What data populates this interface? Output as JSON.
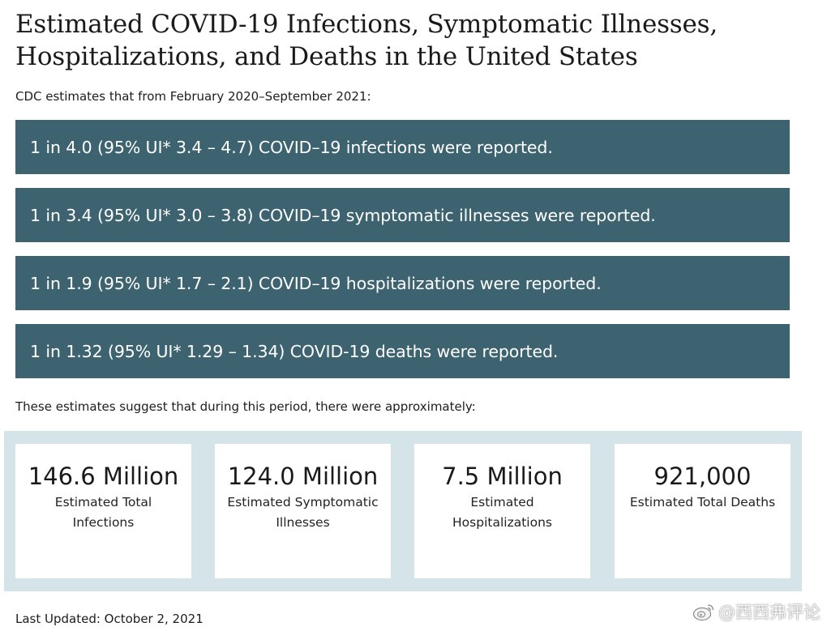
{
  "title": "Estimated COVID-19 Infections, Symptomatic Illnesses, Hospitalizations, and Deaths in the United States",
  "subtitle": "CDC estimates that from February 2020–September 2021:",
  "ratios": [
    "1 in 4.0 (95% UI* 3.4 – 4.7) COVID–19 infections were reported.",
    "1 in 3.4 (95% UI* 3.0 – 3.8) COVID–19 symptomatic illnesses were reported.",
    "1 in 1.9 (95% UI* 1.7 – 2.1) COVID–19 hospitalizations were reported.",
    "1 in 1.32 (95% UI* 1.29 – 1.34) COVID-19 deaths were reported."
  ],
  "intro": "These estimates suggest that during this period, there were approximately:",
  "stats": [
    {
      "value": "146.6 Million",
      "label": "Estimated Total Infections"
    },
    {
      "value": "124.0 Million",
      "label": "Estimated Symptomatic Illnesses"
    },
    {
      "value": "7.5 Million",
      "label": "Estimated Hospitalizations"
    },
    {
      "value": "921,000",
      "label": "Estimated Total Deaths"
    }
  ],
  "last_updated": "Last Updated: October 2, 2021",
  "watermark": {
    "text": "@西西弗评论",
    "icon": "weibo-icon"
  },
  "colors": {
    "ratio_bg": "#3d6370",
    "panel_bg": "#d5e4e8",
    "text": "#1d1d1d"
  }
}
